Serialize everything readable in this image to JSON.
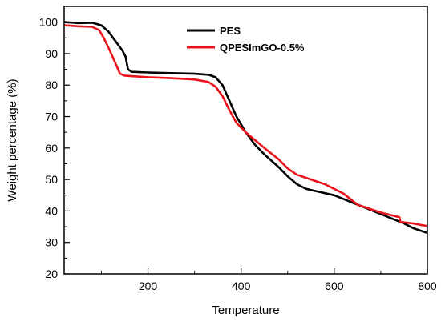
{
  "chart_data": {
    "type": "line",
    "xlabel": "Temperature",
    "ylabel": "Weight percentage (%)",
    "xlim": [
      20,
      800
    ],
    "ylim": [
      20,
      105
    ],
    "x_ticks": [
      200,
      400,
      600,
      800
    ],
    "y_ticks": [
      20,
      30,
      40,
      50,
      60,
      70,
      80,
      90,
      100
    ],
    "grid": false,
    "legend_position": "top-center",
    "series": [
      {
        "name": "PES",
        "color": "#000000",
        "points": [
          [
            20,
            100.0
          ],
          [
            50,
            99.7
          ],
          [
            80,
            99.8
          ],
          [
            100,
            99.0
          ],
          [
            115,
            97.0
          ],
          [
            130,
            94.0
          ],
          [
            145,
            91.0
          ],
          [
            152,
            89.0
          ],
          [
            157,
            85.0
          ],
          [
            165,
            84.2
          ],
          [
            200,
            84.0
          ],
          [
            250,
            83.8
          ],
          [
            300,
            83.6
          ],
          [
            330,
            83.3
          ],
          [
            345,
            82.5
          ],
          [
            360,
            80.0
          ],
          [
            375,
            75.0
          ],
          [
            390,
            70.0
          ],
          [
            410,
            65.0
          ],
          [
            430,
            61.0
          ],
          [
            450,
            58.0
          ],
          [
            480,
            54.0
          ],
          [
            500,
            51.0
          ],
          [
            520,
            48.5
          ],
          [
            540,
            47.0
          ],
          [
            600,
            45.0
          ],
          [
            650,
            42.0
          ],
          [
            700,
            39.0
          ],
          [
            750,
            36.0
          ],
          [
            770,
            34.5
          ],
          [
            800,
            33.0
          ]
        ]
      },
      {
        "name": "QPESImGO-0.5%",
        "color": "#e8131b",
        "points": [
          [
            20,
            99.0
          ],
          [
            50,
            98.7
          ],
          [
            80,
            98.5
          ],
          [
            95,
            97.5
          ],
          [
            105,
            95.0
          ],
          [
            118,
            91.0
          ],
          [
            130,
            87.0
          ],
          [
            140,
            83.6
          ],
          [
            150,
            83.0
          ],
          [
            200,
            82.5
          ],
          [
            250,
            82.2
          ],
          [
            300,
            81.8
          ],
          [
            330,
            81.0
          ],
          [
            345,
            79.5
          ],
          [
            360,
            76.5
          ],
          [
            375,
            72.0
          ],
          [
            390,
            68.0
          ],
          [
            410,
            65.0
          ],
          [
            430,
            62.5
          ],
          [
            450,
            60.0
          ],
          [
            480,
            56.5
          ],
          [
            500,
            53.5
          ],
          [
            520,
            51.5
          ],
          [
            550,
            50.0
          ],
          [
            580,
            48.5
          ],
          [
            620,
            45.5
          ],
          [
            650,
            42.0
          ],
          [
            700,
            39.5
          ],
          [
            740,
            38.0
          ],
          [
            742,
            36.5
          ],
          [
            770,
            36.0
          ],
          [
            800,
            35.2
          ]
        ]
      }
    ]
  }
}
